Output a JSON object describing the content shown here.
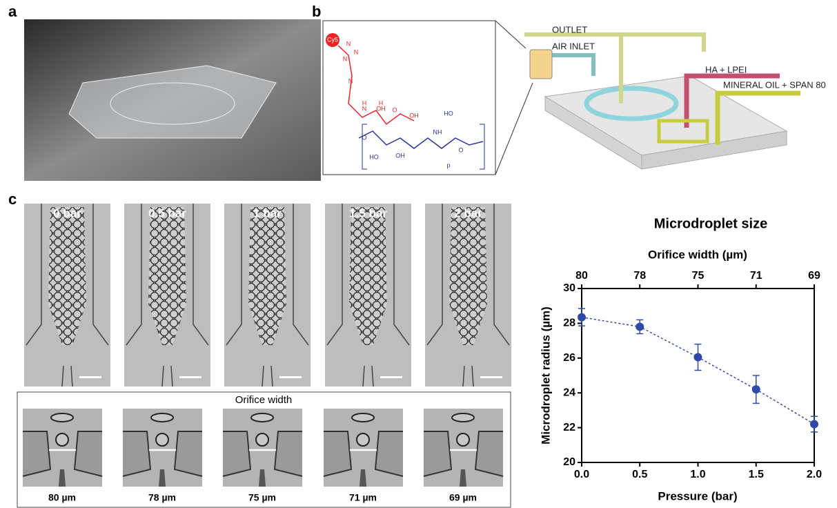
{
  "panels": [
    "a",
    "b",
    "c"
  ],
  "schematic": {
    "labels": [
      "OUTLET",
      "AIR INLET",
      "HA + LPEI",
      "MINERAL OIL + SPAN 80"
    ],
    "molecule": [
      "Cy5",
      "N",
      "N",
      "N",
      "N",
      "H",
      "N",
      "H",
      "OH",
      "O",
      "OH",
      "HO",
      "OH",
      "O",
      "HO",
      "NH",
      "O",
      "p"
    ]
  },
  "micrographs": {
    "pressures": [
      "0 bar",
      "0.5 bar",
      "1 bar",
      "1.5 bar",
      "2 bar"
    ],
    "orifice_title": "Orifice width",
    "widths": [
      "80 µm",
      "78 µm",
      "75 µm",
      "71 µm",
      "69 µm"
    ]
  },
  "chart_data": {
    "type": "line",
    "title": "Microdroplet size",
    "x_label": "Pressure (bar)",
    "y_label": "Microdroplet radius (µm)",
    "x2_label": "Orifice width (µm)",
    "x": [
      0,
      0.5,
      1,
      1.5,
      2
    ],
    "values": [
      28.35,
      27.8,
      26.05,
      24.2,
      22.2
    ],
    "errors": [
      0.5,
      0.4,
      0.75,
      0.8,
      0.45
    ],
    "color": "#2e4bab",
    "xlim": [
      0,
      2
    ],
    "ylim": [
      20,
      30
    ],
    "xticks": [
      {
        "value": 0,
        "label": "0.0"
      },
      0.5,
      {
        "value": 1,
        "label": "1.0"
      },
      1.5,
      {
        "value": 2,
        "label": "2.0"
      }
    ],
    "yticks": [
      20,
      22,
      24,
      26,
      28,
      30
    ],
    "x2ticks": [
      {
        "value": 0,
        "label": "80"
      },
      {
        "value": 0.5,
        "label": "78"
      },
      {
        "value": 1,
        "label": "75"
      },
      {
        "value": 1.5,
        "label": "71"
      },
      {
        "value": 2,
        "label": "69"
      }
    ]
  }
}
